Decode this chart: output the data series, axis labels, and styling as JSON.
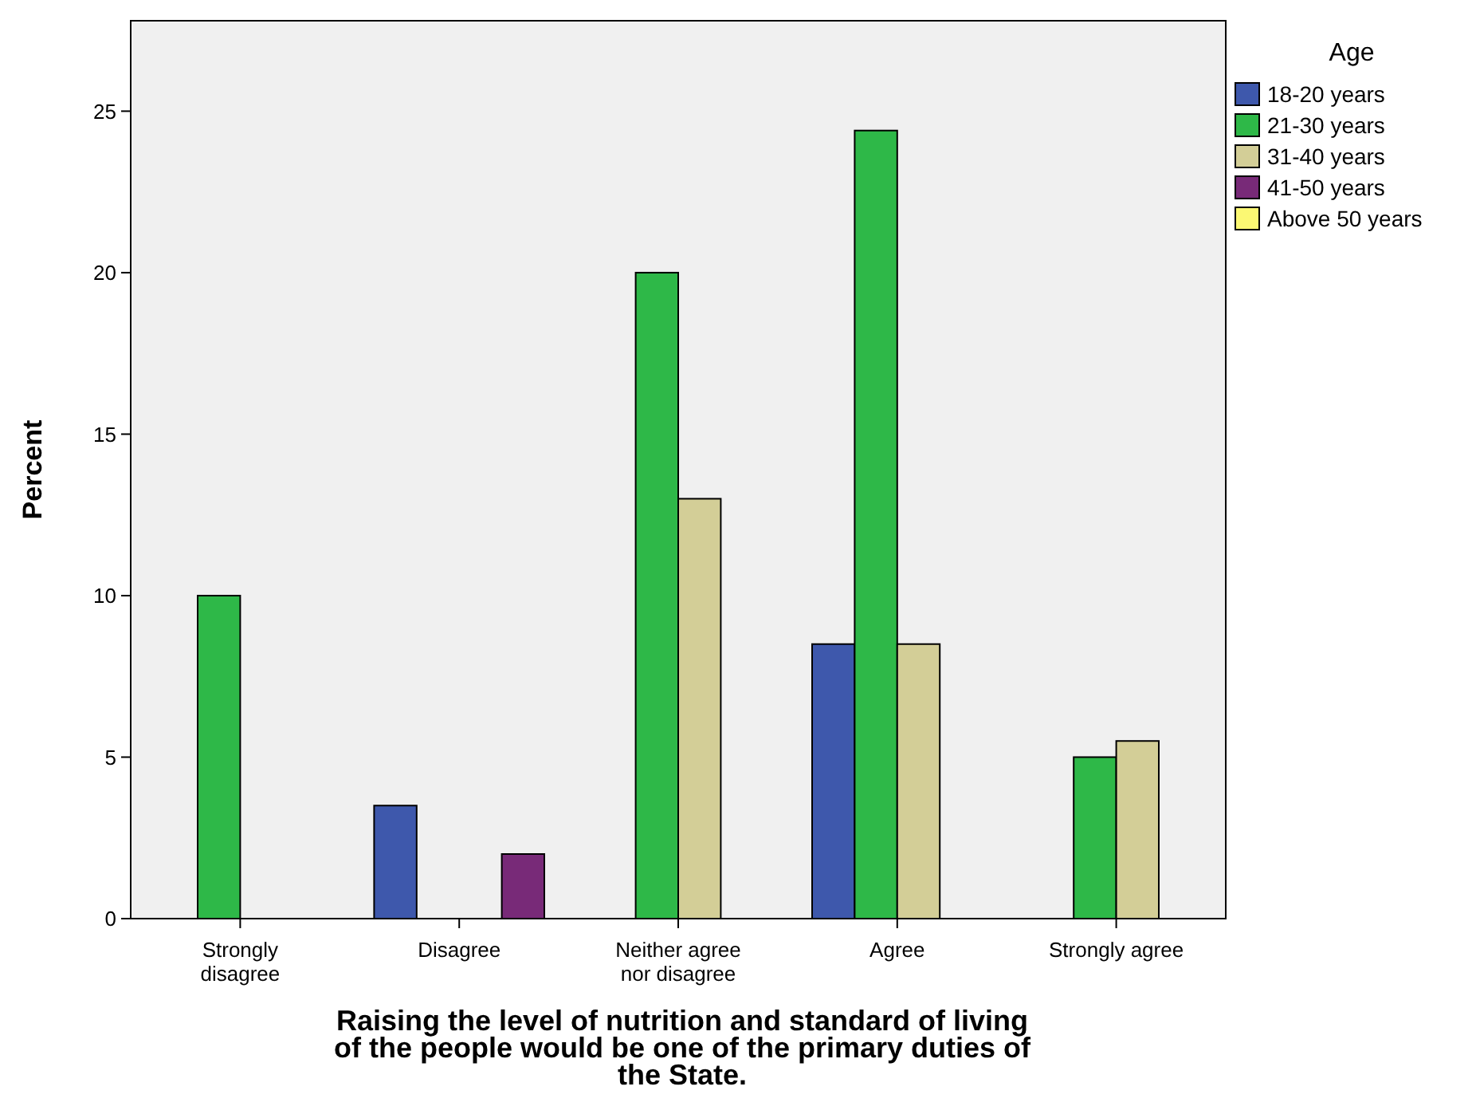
{
  "chart_data": {
    "type": "bar",
    "xlabel": "Raising the level of nutrition and standard of living of the people would be one of the primary duties of the State.",
    "ylabel": "Percent",
    "legend_title": "Age",
    "categories": [
      "Strongly disagree",
      "Disagree",
      "Neither agree nor disagree",
      "Agree",
      "Strongly agree"
    ],
    "series": [
      {
        "name": "18-20 years",
        "color": "#3e58ac",
        "values": [
          null,
          3.5,
          null,
          8.5,
          null
        ]
      },
      {
        "name": "21-30 years",
        "color": "#2eb848",
        "values": [
          10,
          null,
          20,
          24.4,
          5
        ]
      },
      {
        "name": "31-40 years",
        "color": "#d3ce97",
        "values": [
          null,
          null,
          13,
          8.5,
          5.5
        ]
      },
      {
        "name": "41-50 years",
        "color": "#782a78",
        "values": [
          null,
          2,
          null,
          null,
          null
        ]
      },
      {
        "name": "Above 50 years",
        "color": "#fbf873",
        "values": [
          null,
          null,
          null,
          null,
          null
        ]
      }
    ],
    "ylim": [
      0,
      27.8
    ],
    "yticks": [
      0,
      5,
      10,
      15,
      20,
      25
    ],
    "grid": false,
    "legend": "right"
  }
}
